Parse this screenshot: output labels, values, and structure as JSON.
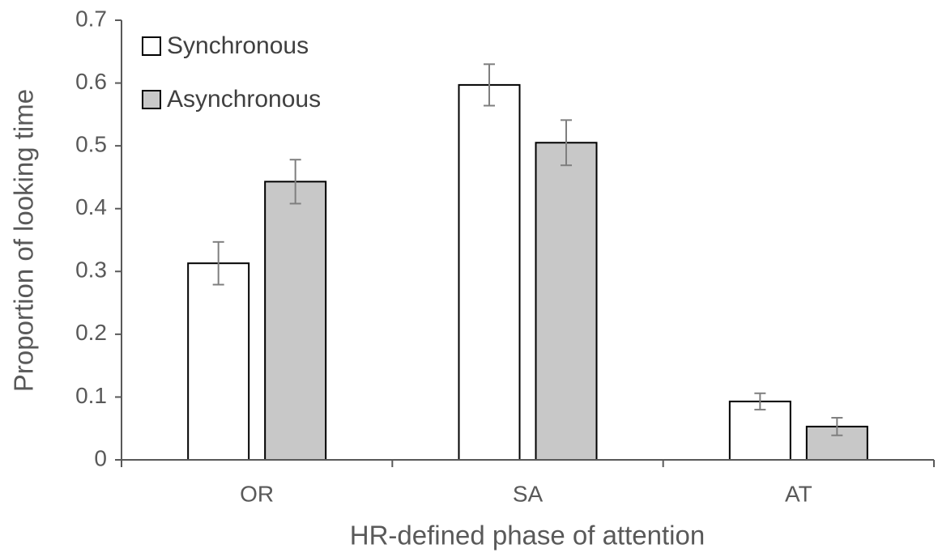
{
  "chart_data": {
    "type": "bar",
    "x_label": "HR-defined phase of attention",
    "y_label": "Proportion of looking time",
    "categories": [
      "OR",
      "SA",
      "AT"
    ],
    "series": [
      {
        "name": "Synchronous",
        "color": "#ffffff",
        "values": [
          0.313,
          0.597,
          0.093
        ],
        "errors": [
          0.034,
          0.033,
          0.013
        ]
      },
      {
        "name": "Asynchronous",
        "color": "#c8c8c8",
        "values": [
          0.443,
          0.505,
          0.053
        ],
        "errors": [
          0.035,
          0.036,
          0.014
        ]
      }
    ],
    "ylim": [
      0,
      0.7
    ],
    "yticks": [
      0,
      0.1,
      0.2,
      0.3,
      0.4,
      0.5,
      0.6,
      0.7
    ],
    "legend": "upper left"
  }
}
